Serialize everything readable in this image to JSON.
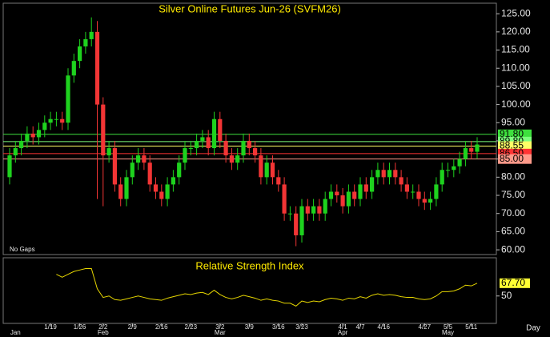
{
  "chart_data": [
    {
      "type": "candlestick",
      "title": "Silver Online Futures Jun-26 (SVFM26)",
      "categories": [
        null,
        null,
        null,
        null,
        null,
        null,
        null,
        "1/19",
        null,
        null,
        null,
        null,
        "1/26",
        null,
        null,
        null,
        "2/2",
        null,
        null,
        null,
        null,
        "2/9",
        null,
        null,
        null,
        null,
        "2/16",
        null,
        null,
        null,
        null,
        "2/23",
        null,
        null,
        null,
        null,
        "3/2",
        null,
        null,
        null,
        null,
        "3/9",
        null,
        null,
        null,
        null,
        "3/16",
        null,
        null,
        null,
        "3/23",
        null,
        null,
        null,
        null,
        null,
        null,
        "4/1",
        null,
        null,
        "4/7",
        null,
        null,
        null,
        "4/16",
        null,
        null,
        null,
        null,
        null,
        null,
        "4/27",
        null,
        null,
        null,
        "5/5",
        null,
        null,
        null,
        "5/11",
        null
      ],
      "month_labels": [
        null,
        "Jan",
        null,
        null,
        null,
        null,
        null,
        null,
        null,
        null,
        null,
        null,
        null,
        null,
        null,
        null,
        "Feb",
        null,
        null,
        null,
        null,
        null,
        null,
        null,
        null,
        null,
        null,
        null,
        null,
        null,
        null,
        null,
        null,
        null,
        null,
        null,
        "Mar",
        null,
        null,
        null,
        null,
        null,
        null,
        null,
        null,
        null,
        null,
        null,
        null,
        null,
        null,
        null,
        null,
        null,
        null,
        null,
        null,
        "Apr",
        null,
        null,
        null,
        null,
        null,
        null,
        null,
        null,
        null,
        null,
        null,
        null,
        null,
        null,
        null,
        null,
        null,
        "May",
        null,
        null,
        null,
        null,
        null
      ],
      "open": [
        80,
        86,
        88,
        90,
        92,
        91,
        93,
        95,
        96,
        96,
        95,
        108,
        112,
        116,
        118,
        120,
        100,
        86,
        88,
        78,
        74,
        80,
        84,
        86,
        84,
        78,
        76,
        74,
        78,
        80,
        84,
        88,
        88,
        90,
        91,
        88,
        96,
        90,
        86,
        84,
        86,
        90,
        88,
        86,
        80,
        84,
        80,
        78,
        70,
        70,
        64,
        72,
        70,
        72,
        70,
        74,
        76,
        75,
        72,
        76,
        74,
        78,
        76,
        80,
        82,
        80,
        82,
        80,
        78,
        76,
        76,
        74,
        73,
        74,
        78,
        82,
        82,
        83,
        85,
        88,
        87
      ],
      "high": [
        88,
        90,
        92,
        94,
        94,
        95,
        97,
        98,
        98,
        98,
        110,
        114,
        118,
        120,
        124,
        123,
        102,
        90,
        90,
        80,
        82,
        86,
        88,
        88,
        86,
        80,
        78,
        80,
        82,
        86,
        90,
        90,
        92,
        93,
        93,
        98,
        98,
        92,
        88,
        88,
        92,
        92,
        90,
        88,
        86,
        86,
        82,
        80,
        72,
        72,
        74,
        74,
        74,
        74,
        76,
        78,
        78,
        77,
        78,
        78,
        80,
        80,
        82,
        84,
        84,
        84,
        84,
        82,
        80,
        78,
        78,
        76,
        76,
        80,
        84,
        84,
        85,
        87,
        90,
        90,
        91
      ],
      "low": [
        78,
        84,
        86,
        88,
        89,
        89,
        91,
        93,
        94,
        93,
        93,
        106,
        110,
        114,
        116,
        74,
        72,
        84,
        76,
        72,
        72,
        78,
        82,
        82,
        76,
        74,
        72,
        72,
        76,
        78,
        82,
        86,
        86,
        88,
        86,
        86,
        88,
        84,
        82,
        82,
        84,
        86,
        84,
        78,
        78,
        78,
        76,
        68,
        68,
        61,
        62,
        68,
        68,
        68,
        68,
        72,
        73,
        70,
        70,
        72,
        72,
        74,
        74,
        78,
        78,
        78,
        78,
        76,
        74,
        74,
        72,
        71,
        71,
        72,
        76,
        80,
        80,
        81,
        83,
        85,
        85
      ],
      "close": [
        86,
        88,
        90,
        92,
        91,
        93,
        95,
        96,
        96,
        95,
        108,
        112,
        116,
        118,
        120,
        100,
        86,
        88,
        78,
        74,
        80,
        84,
        86,
        84,
        78,
        76,
        74,
        78,
        80,
        84,
        88,
        88,
        90,
        91,
        88,
        96,
        90,
        86,
        84,
        86,
        90,
        88,
        86,
        80,
        84,
        80,
        78,
        70,
        70,
        64,
        72,
        70,
        72,
        70,
        74,
        76,
        75,
        72,
        76,
        74,
        78,
        76,
        80,
        82,
        80,
        82,
        80,
        78,
        76,
        76,
        74,
        73,
        74,
        78,
        82,
        82,
        83,
        85,
        88,
        87,
        89
      ],
      "up_color": "#1ed21e",
      "down_color": "#f23535",
      "ylim": [
        58.7,
        127.9
      ],
      "yticks": [
        {
          "value": 60,
          "label": "60.00"
        },
        {
          "value": 65,
          "label": "65.00"
        },
        {
          "value": 70,
          "label": "70.00"
        },
        {
          "value": 75,
          "label": "75.00"
        },
        {
          "value": 80,
          "label": "80.00"
        },
        {
          "value": 85,
          "label": "85.00"
        },
        {
          "value": 90,
          "label": "90.00"
        },
        {
          "value": 95,
          "label": "95.00"
        },
        {
          "value": 100,
          "label": "100.00"
        },
        {
          "value": 105,
          "label": "105.00"
        },
        {
          "value": 110,
          "label": "110.00"
        },
        {
          "value": 115,
          "label": "115.00"
        },
        {
          "value": 120,
          "label": "120.00"
        },
        {
          "value": 125,
          "label": "125.00"
        }
      ],
      "levels": [
        {
          "value": 91.8,
          "label": "91.80",
          "color": "#3ee03e"
        },
        {
          "value": 89.8,
          "label": "89.80",
          "color": "#7cff7c"
        },
        {
          "value": 88.55,
          "label": "88.55",
          "color": "#ffff66"
        },
        {
          "value": 86.5,
          "label": "86.50",
          "color": "#ff3333"
        },
        {
          "value": 85,
          "label": "85.00",
          "color": "#ff9a8a"
        }
      ],
      "note": "No Gaps",
      "x_unit": "Day"
    },
    {
      "type": "line",
      "title": "Relative Strength Index",
      "values": [
        null,
        null,
        null,
        null,
        null,
        null,
        null,
        null,
        80,
        76,
        80,
        84,
        86,
        88,
        88,
        60,
        48,
        50,
        45,
        44,
        46,
        48,
        50,
        48,
        46,
        45,
        44,
        47,
        49,
        51,
        53,
        52,
        54,
        55,
        52,
        58,
        52,
        48,
        46,
        48,
        51,
        49,
        47,
        44,
        46,
        44,
        43,
        40,
        40,
        36,
        43,
        41,
        43,
        42,
        45,
        47,
        46,
        44,
        47,
        46,
        49,
        47,
        51,
        53,
        51,
        52,
        51,
        49,
        48,
        48,
        46,
        45,
        46,
        50,
        56,
        56,
        57,
        60,
        65,
        64,
        67.7
      ],
      "value_labels": [
        null,
        null,
        null,
        null,
        null,
        null,
        null,
        null,
        null,
        null,
        null,
        null,
        null,
        null,
        null,
        null,
        null,
        null,
        null,
        null,
        null,
        null,
        null,
        null,
        null,
        null,
        null,
        null,
        null,
        null,
        null,
        null,
        null,
        null,
        null,
        null,
        null,
        null,
        null,
        null,
        null,
        null,
        null,
        null,
        null,
        null,
        null,
        null,
        null,
        null,
        null,
        null,
        null,
        null,
        null,
        null,
        null,
        null,
        null,
        null,
        null,
        null,
        null,
        null,
        null,
        null,
        null,
        null,
        null,
        null,
        null,
        null,
        null,
        null,
        null,
        null,
        null,
        null,
        null,
        null,
        "67.70"
      ],
      "color": "#e6d600",
      "label_color": "#ffff33",
      "ylim": [
        12,
        103
      ],
      "yticks": [
        50
      ]
    }
  ]
}
